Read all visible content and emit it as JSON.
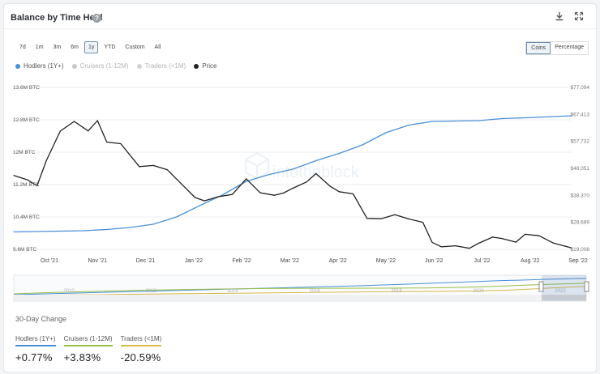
{
  "header": {
    "title": "Balance by Time Held",
    "help_icon": "question-icon",
    "download_icon": "download-icon",
    "expand_icon": "expand-icon"
  },
  "ranges": [
    "7d",
    "1m",
    "3m",
    "6m",
    "1y",
    "YTD",
    "Custom",
    "All"
  ],
  "active_range": "1y",
  "units": [
    "Coins",
    "Percentage"
  ],
  "active_unit": "Coins",
  "legend": [
    {
      "label": "Hodlers (1Y+)",
      "color": "#4a90d9"
    },
    {
      "label": "Cruisers (1-12M)",
      "color": "#c8c8c8"
    },
    {
      "label": "Traders (<1M)",
      "color": "#d2d2d2"
    },
    {
      "label": "Price",
      "color": "#222222"
    }
  ],
  "watermark": "intotheblock",
  "chart_data": {
    "type": "line",
    "x_ticks": [
      "Oct '21",
      "Nov '21",
      "Dec '21",
      "Jan '22",
      "Feb '22",
      "Mar '22",
      "Apr '22",
      "May '22",
      "Jun '22",
      "Jul '22",
      "Aug '22",
      "Sep '22"
    ],
    "y_left_ticks": [
      "13.6M BTC",
      "12.8M BTC",
      "12M BTC",
      "11.2M BTC",
      "10.4M BTC",
      "9.6M BTC"
    ],
    "y_left_range": [
      9.6,
      13.6
    ],
    "y_right_ticks": [
      "$77,094",
      "$67,413",
      "$57,732",
      "$48,051",
      "$38,370",
      "$28,689",
      "$19,008"
    ],
    "y_right_range": [
      19008,
      77094
    ],
    "x_range_months": [
      0,
      12
    ],
    "series": [
      {
        "name": "Hodlers (1Y+)",
        "axis": "left",
        "color": "#4a90d9",
        "points": [
          [
            0,
            10.03
          ],
          [
            1,
            10.05
          ],
          [
            1.5,
            10.06
          ],
          [
            2,
            10.09
          ],
          [
            2.5,
            10.14
          ],
          [
            3,
            10.22
          ],
          [
            3.5,
            10.4
          ],
          [
            4,
            10.68
          ],
          [
            4.5,
            10.95
          ],
          [
            5,
            11.28
          ],
          [
            5.5,
            11.45
          ],
          [
            6,
            11.58
          ],
          [
            6.5,
            11.79
          ],
          [
            7,
            11.97
          ],
          [
            7.5,
            12.18
          ],
          [
            8,
            12.48
          ],
          [
            8.5,
            12.67
          ],
          [
            9,
            12.76
          ],
          [
            9.5,
            12.77
          ],
          [
            10,
            12.78
          ],
          [
            10.5,
            12.83
          ],
          [
            11,
            12.85
          ],
          [
            11.6,
            12.88
          ],
          [
            12,
            12.9
          ]
        ]
      },
      {
        "name": "Price",
        "axis": "right",
        "color": "#222222",
        "points": [
          [
            0,
            45500
          ],
          [
            0.3,
            43900
          ],
          [
            0.5,
            41800
          ],
          [
            0.7,
            50800
          ],
          [
            1,
            61400
          ],
          [
            1.3,
            64900
          ],
          [
            1.6,
            61500
          ],
          [
            1.8,
            65200
          ],
          [
            2,
            57500
          ],
          [
            2.3,
            56900
          ],
          [
            2.7,
            48700
          ],
          [
            3,
            49100
          ],
          [
            3.3,
            47600
          ],
          [
            3.6,
            42600
          ],
          [
            3.9,
            37600
          ],
          [
            4.1,
            36400
          ],
          [
            4.4,
            37900
          ],
          [
            4.7,
            38700
          ],
          [
            5,
            44300
          ],
          [
            5.3,
            39300
          ],
          [
            5.6,
            38400
          ],
          [
            5.8,
            39200
          ],
          [
            6,
            40900
          ],
          [
            6.3,
            43200
          ],
          [
            6.5,
            46200
          ],
          [
            6.8,
            41700
          ],
          [
            7,
            39700
          ],
          [
            7.3,
            38900
          ],
          [
            7.6,
            30100
          ],
          [
            7.9,
            30000
          ],
          [
            8.2,
            31400
          ],
          [
            8.5,
            29900
          ],
          [
            8.8,
            28700
          ],
          [
            9,
            21500
          ],
          [
            9.2,
            19900
          ],
          [
            9.5,
            20300
          ],
          [
            9.8,
            19400
          ],
          [
            10,
            21200
          ],
          [
            10.3,
            23400
          ],
          [
            10.5,
            22900
          ],
          [
            10.8,
            21600
          ],
          [
            11,
            24400
          ],
          [
            11.3,
            23900
          ],
          [
            11.6,
            21300
          ],
          [
            12,
            19500
          ]
        ]
      }
    ]
  },
  "change": {
    "title": "30-Day Change",
    "items": [
      {
        "label": "Hodlers (1Y+)",
        "value": "+0.77%",
        "color": "#4a90d9"
      },
      {
        "label": "Cruisers (1-12M)",
        "value": "+3.83%",
        "color": "#9abd49"
      },
      {
        "label": "Traders (<1M)",
        "value": "-20.59%",
        "color": "#d8b84a"
      }
    ]
  },
  "navigator": {
    "years": [
      "2010",
      "2012",
      "2014",
      "2016",
      "2018",
      "2020",
      "2022"
    ]
  }
}
